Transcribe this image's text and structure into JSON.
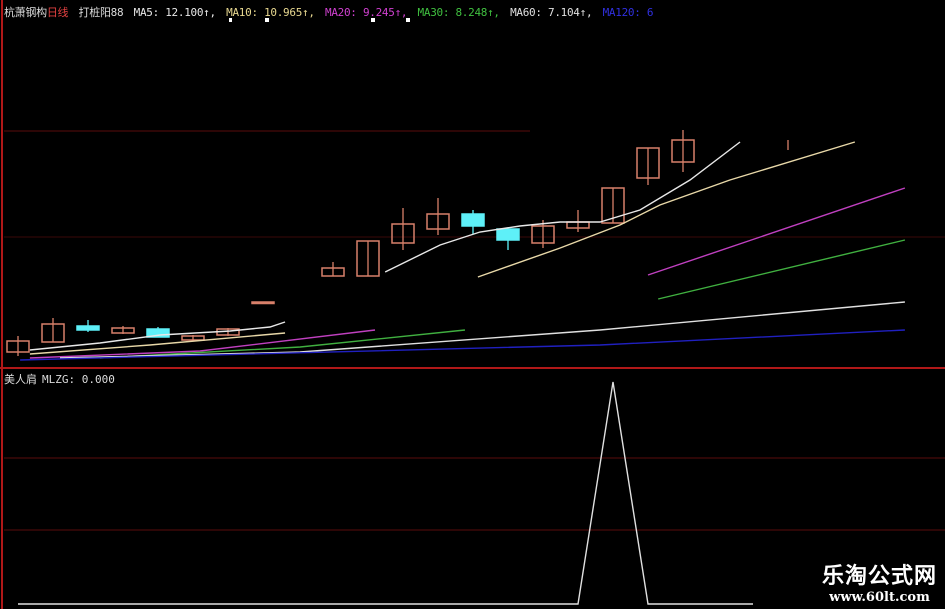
{
  "header": {
    "stock_name": "杭萧钢构",
    "period": "日线",
    "formula": "打桩阳88",
    "ma5": "MA5: 12.100↑,",
    "ma10": "MA10: 10.965↑,",
    "ma20": "MA20: 9.245↑,",
    "ma30": "MA30: 8.248↑,",
    "ma60": "MA60: 7.104↑,",
    "ma120": "MA120: 6"
  },
  "sub_panel": {
    "indicator_name": "美人肩",
    "value_label": "MLZG: 0.000"
  },
  "watermark": {
    "title": "乐淘公式网",
    "url": "www.60lt.com"
  },
  "colors": {
    "up": "#d8806a",
    "down": "#5ef0f8",
    "grid": "#7a1010",
    "border": "#b01818",
    "ma5": "#e8e8e8",
    "ma10": "#e8d8a8",
    "ma20": "#c040c0",
    "ma30": "#40b040",
    "ma60": "#e0e0e0",
    "ma120": "#2020c0",
    "indicator": "#e0e0e0"
  },
  "chart_data": [
    {
      "type": "candlestick",
      "title": "",
      "candles": [
        {
          "i": 0,
          "o": 4.32,
          "c": 4.76,
          "h": 4.96,
          "l": 4.16
        },
        {
          "i": 1,
          "o": 4.72,
          "c": 5.44,
          "h": 5.68,
          "l": 4.72
        },
        {
          "i": 2,
          "o": 5.36,
          "c": 5.2,
          "h": 5.6,
          "l": 5.12
        },
        {
          "i": 3,
          "o": 5.08,
          "c": 5.28,
          "h": 5.36,
          "l": 5.04
        },
        {
          "i": 4,
          "o": 5.24,
          "c": 4.92,
          "h": 5.32,
          "l": 4.92
        },
        {
          "i": 5,
          "o": 4.8,
          "c": 4.96,
          "h": 5.0,
          "l": 4.76
        },
        {
          "i": 6,
          "o": 5.0,
          "c": 5.24,
          "h": 5.28,
          "l": 4.96
        },
        {
          "i": 7,
          "o": 6.28,
          "c": 6.32,
          "h": 6.32,
          "l": 6.28
        },
        {
          "i": 9,
          "o": 7.36,
          "c": 7.68,
          "h": 7.92,
          "l": 7.36
        },
        {
          "i": 10,
          "o": 7.36,
          "c": 8.76,
          "h": 8.76,
          "l": 7.36
        },
        {
          "i": 11,
          "o": 8.68,
          "c": 9.44,
          "h": 10.08,
          "l": 8.4
        },
        {
          "i": 12,
          "o": 9.24,
          "c": 9.84,
          "h": 10.48,
          "l": 9.0
        },
        {
          "i": 13,
          "o": 9.84,
          "c": 9.36,
          "h": 10.0,
          "l": 9.04
        },
        {
          "i": 14,
          "o": 9.24,
          "c": 8.8,
          "h": 9.24,
          "l": 8.4
        },
        {
          "i": 15,
          "o": 8.68,
          "c": 9.36,
          "h": 9.6,
          "l": 8.48
        },
        {
          "i": 16,
          "o": 9.28,
          "c": 9.52,
          "h": 10.0,
          "l": 9.12
        },
        {
          "i": 17,
          "o": 9.48,
          "c": 10.88,
          "h": 10.88,
          "l": 9.48
        },
        {
          "i": 18,
          "o": 11.28,
          "c": 12.48,
          "h": 12.48,
          "l": 11.0
        },
        {
          "i": 19,
          "o": 11.92,
          "c": 12.8,
          "h": 13.2,
          "l": 11.52
        },
        {
          "i": 22,
          "o": 12.6,
          "c": 12.6,
          "h": 12.8,
          "l": 12.4
        }
      ],
      "moving_averages": [
        {
          "name": "MA5",
          "color_key": "ma5",
          "segments": [
            [
              [
                0.34,
                4.4
              ],
              [
                2.34,
                4.68
              ],
              [
                4.06,
                5.0
              ],
              [
                6.06,
                5.16
              ],
              [
                7.2,
                5.32
              ],
              [
                7.63,
                5.52
              ]
            ],
            [
              [
                10.49,
                7.52
              ],
              [
                12.06,
                8.6
              ],
              [
                13.2,
                9.12
              ],
              [
                14.34,
                9.36
              ],
              [
                15.49,
                9.52
              ],
              [
                16.63,
                9.52
              ],
              [
                17.77,
                10.0
              ],
              [
                19.2,
                11.2
              ],
              [
                20.63,
                12.72
              ]
            ]
          ]
        },
        {
          "name": "MA10",
          "color_key": "ma10",
          "segments": [
            [
              [
                0.34,
                4.24
              ],
              [
                3.77,
                4.6
              ],
              [
                7.63,
                5.08
              ]
            ],
            [
              [
                13.14,
                7.32
              ],
              [
                15.49,
                8.48
              ],
              [
                17.2,
                9.4
              ],
              [
                18.34,
                10.2
              ],
              [
                20.34,
                11.2
              ],
              [
                23.91,
                12.72
              ]
            ]
          ]
        },
        {
          "name": "MA20",
          "color_key": "ma20",
          "segments": [
            [
              [
                0.34,
                4.08
              ],
              [
                5.2,
                4.36
              ],
              [
                10.2,
                5.2
              ]
            ],
            [
              [
                18.0,
                7.4
              ],
              [
                25.34,
                10.88
              ]
            ]
          ]
        },
        {
          "name": "MA30",
          "color_key": "ma30",
          "segments": [
            [
              [
                2.34,
                4.08
              ],
              [
                8.06,
                4.52
              ],
              [
                12.77,
                5.2
              ]
            ],
            [
              [
                18.29,
                6.44
              ],
              [
                25.34,
                8.8
              ]
            ]
          ]
        },
        {
          "name": "MA60",
          "color_key": "ma60",
          "segments": [
            [
              [
                1.2,
                4.08
              ],
              [
                8.06,
                4.32
              ],
              [
                16.63,
                5.2
              ],
              [
                25.34,
                6.32
              ]
            ]
          ]
        },
        {
          "name": "MA120",
          "color_key": "ma120",
          "segments": [
            [
              [
                0.06,
                4.0
              ],
              [
                16.63,
                4.6
              ],
              [
                25.34,
                5.2
              ]
            ]
          ]
        }
      ],
      "grid": true
    },
    {
      "type": "line",
      "title": "",
      "series": [
        {
          "name": "MLZG",
          "x": [
            0,
            16,
            17,
            18,
            21
          ],
          "values": [
            0,
            0,
            1,
            0,
            0
          ]
        }
      ],
      "ylim": [
        0,
        1
      ]
    }
  ]
}
